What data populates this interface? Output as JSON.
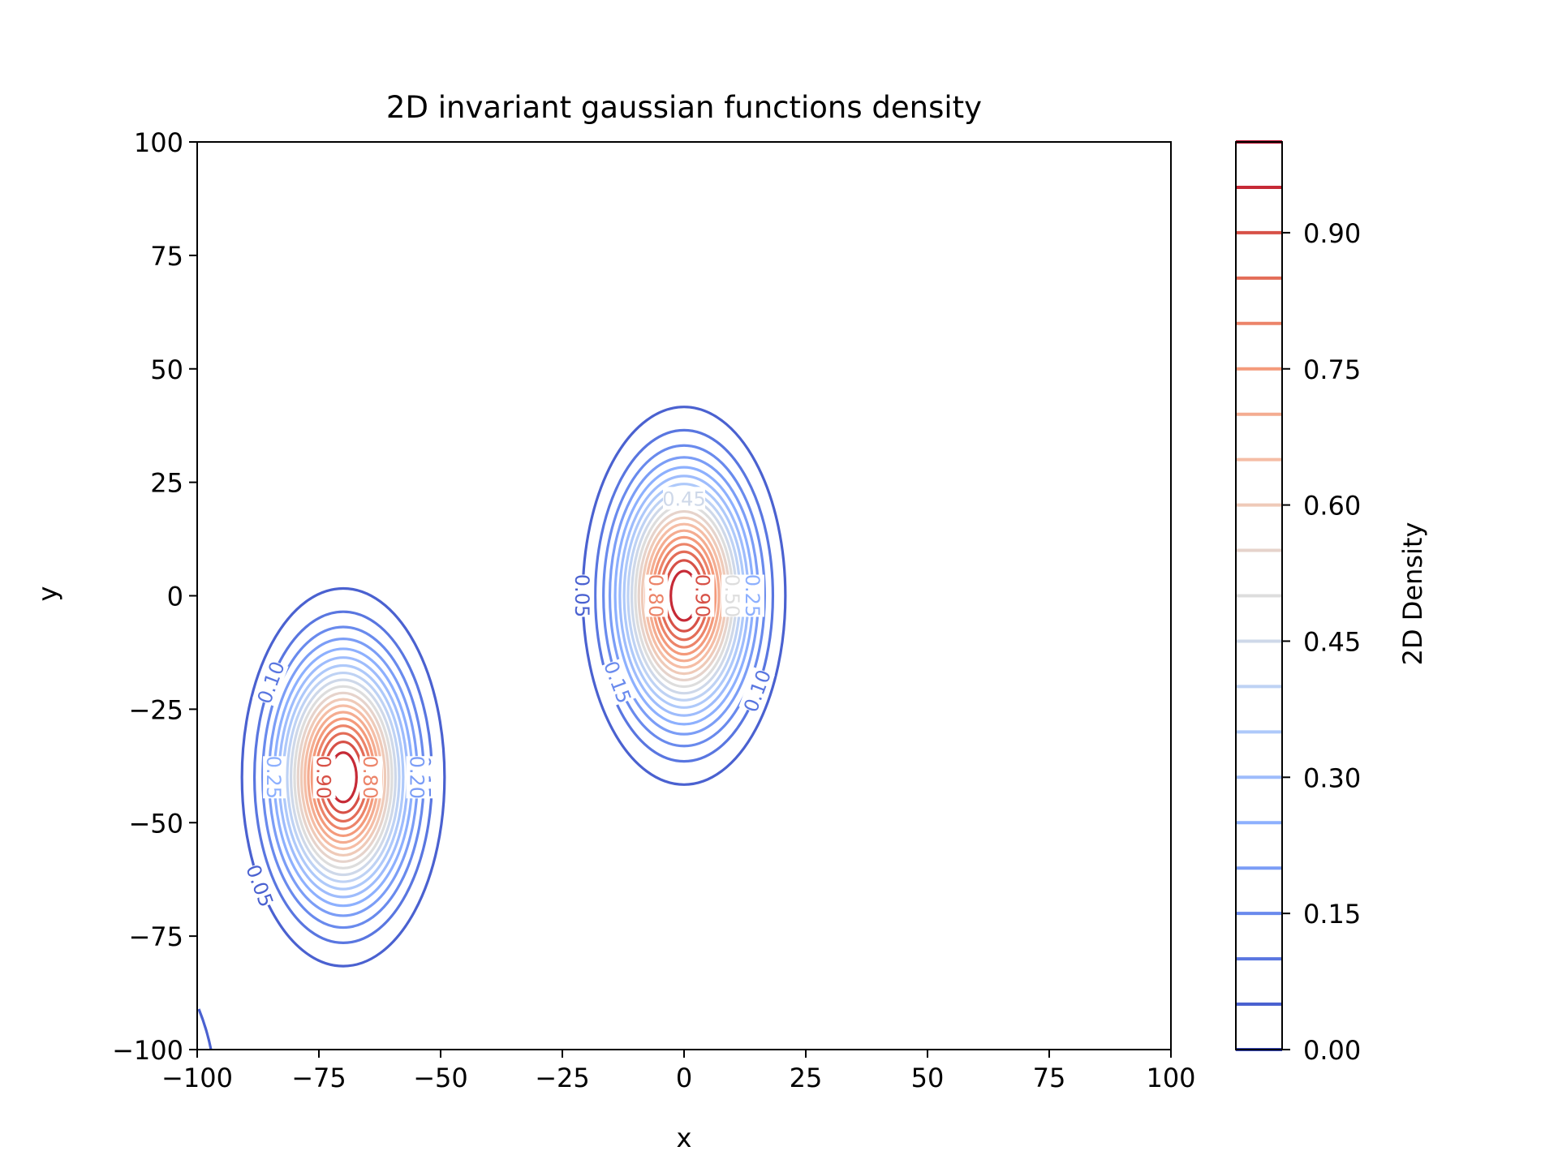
{
  "chart_data": {
    "type": "contour",
    "title": "2D invariant gaussian functions density",
    "xlabel": "x",
    "ylabel": "y",
    "xlim": [
      -100,
      100
    ],
    "ylim": [
      -100,
      100
    ],
    "xticks": [
      "−100",
      "−75",
      "−50",
      "−25",
      "0",
      "25",
      "50",
      "75",
      "100"
    ],
    "yticks": [
      "−100",
      "−75",
      "−50",
      "−25",
      "0",
      "25",
      "50",
      "75",
      "100"
    ],
    "colorbar": {
      "label": "2D Density",
      "range": [
        0,
        1
      ],
      "ticks": [
        "0.00",
        "0.15",
        "0.30",
        "0.45",
        "0.60",
        "0.75",
        "0.90"
      ],
      "level_step": 0.05
    },
    "colormap": "coolwarm",
    "grid": false,
    "gaussians": [
      {
        "center": [
          0,
          0
        ],
        "sigma_x": 8.5,
        "sigma_y": 17
      },
      {
        "center": [
          -70,
          -40
        ],
        "sigma_x": 8.5,
        "sigma_y": 17
      }
    ],
    "partial_contour_corner": "bottom-left",
    "contour_labels": [
      {
        "text": "0.05",
        "gaussian": 0,
        "level": 0.05,
        "side": "left"
      },
      {
        "text": "0.10",
        "gaussian": 0,
        "level": 0.1,
        "side": "lower-right"
      },
      {
        "text": "0.15",
        "gaussian": 0,
        "level": 0.15,
        "side": "lower-left"
      },
      {
        "text": "0.25",
        "gaussian": 0,
        "level": 0.25,
        "side": "right"
      },
      {
        "text": "0.45",
        "gaussian": 0,
        "level": 0.45,
        "side": "top"
      },
      {
        "text": "0.50",
        "gaussian": 0,
        "level": 0.5,
        "side": "right"
      },
      {
        "text": "0.80",
        "gaussian": 0,
        "level": 0.8,
        "side": "left"
      },
      {
        "text": "0.90",
        "gaussian": 0,
        "level": 0.9,
        "side": "right"
      },
      {
        "text": "0.05",
        "gaussian": 1,
        "level": 0.05,
        "side": "lower-left"
      },
      {
        "text": "0.10",
        "gaussian": 1,
        "level": 0.1,
        "side": "upper-left"
      },
      {
        "text": "0.15",
        "gaussian": 1,
        "level": 0.15,
        "side": "right"
      },
      {
        "text": "0.20",
        "gaussian": 1,
        "level": 0.2,
        "side": "right"
      },
      {
        "text": "0.25",
        "gaussian": 1,
        "level": 0.25,
        "side": "left"
      },
      {
        "text": "0.80",
        "gaussian": 1,
        "level": 0.8,
        "side": "right"
      },
      {
        "text": "0.90",
        "gaussian": 1,
        "level": 0.9,
        "side": "left"
      }
    ]
  }
}
